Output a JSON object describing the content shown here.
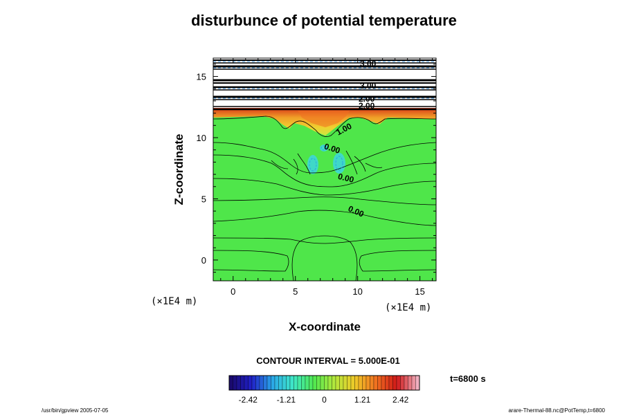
{
  "chart_data": {
    "type": "heatmap",
    "title": "disturbunce of potential temperature",
    "xlabel": "X-coordinate",
    "ylabel": "Z-coordinate",
    "x_unit": "(×1E4 m)",
    "z_unit": "(×1E4 m)",
    "xlim": [
      -1.6,
      16.3
    ],
    "ylim": [
      -1.7,
      16.5
    ],
    "x_ticks": [
      "0",
      "5",
      "10",
      "15"
    ],
    "y_ticks": [
      "0",
      "5",
      "10",
      "15"
    ],
    "contour_interval_text": "CONTOUR INTERVAL = 5.000E-01",
    "contour_labels": [
      "0.00",
      "0.00",
      "0.00",
      "1.00",
      "2.00",
      "2.00",
      "3.00",
      "3.00"
    ],
    "colorbar": {
      "ticks": [
        "-2.42",
        "-1.21",
        "0",
        "1.21",
        "2.42"
      ],
      "tick_values": [
        -2.42,
        -1.21,
        0,
        1.21,
        2.42
      ],
      "range": [
        -3.02,
        3.02
      ],
      "colors": [
        "#1a0a6e",
        "#2020c8",
        "#2aa8e8",
        "#3fe8c8",
        "#50e850",
        "#b4e83c",
        "#f0c828",
        "#f07020",
        "#d01818",
        "#f0b0c0"
      ]
    },
    "time_label": "t=6800 s",
    "footer_left": "/usr/bin/gpview 2005-07-05",
    "footer_right": "arare-Thermal-88.nc@PotTemp,t=6800",
    "field": {
      "background": "#4fe64a",
      "upper_band_color": "#ffffff",
      "warm_layer_colors": [
        "#f0a028",
        "#f0d030",
        "#c8e840"
      ],
      "cold_anomaly_color": "#3fd8c8"
    }
  }
}
